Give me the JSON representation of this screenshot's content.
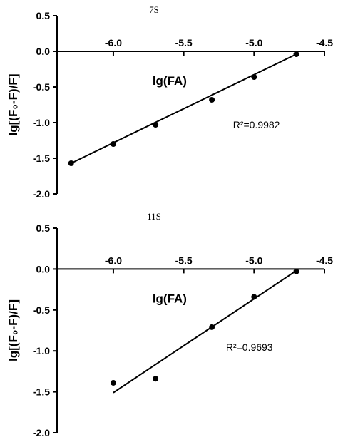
{
  "chart_data": [
    {
      "type": "scatter",
      "title": "7S",
      "xlabel": "lg(FA)",
      "ylabel": "lg[(F₀-F)/F]",
      "xlim": [
        -6.4,
        -4.5
      ],
      "ylim": [
        -2.0,
        0.5
      ],
      "xticks": [
        -6.0,
        -5.5,
        -5.0,
        -4.5
      ],
      "xtick_labels": [
        "-6.0",
        "-5.5",
        "-5.0",
        "-4.5"
      ],
      "yticks": [
        0.5,
        0.0,
        -0.5,
        -1.0,
        -1.5,
        -2.0
      ],
      "ytick_labels": [
        "0.5",
        "0.0",
        "-0.5",
        "-1.0",
        "-1.5",
        "-2.0"
      ],
      "points": [
        {
          "x": -6.3,
          "y": -1.57
        },
        {
          "x": -6.0,
          "y": -1.3
        },
        {
          "x": -5.7,
          "y": -1.03
        },
        {
          "x": -5.3,
          "y": -0.68
        },
        {
          "x": -5.0,
          "y": -0.36
        },
        {
          "x": -4.7,
          "y": -0.04
        }
      ],
      "fit_line": {
        "x": [
          -6.3,
          -4.7
        ],
        "y": [
          -1.57,
          -0.04
        ]
      },
      "annotation": {
        "text": "R²=0.9982",
        "x": -5.15,
        "y": -1.08
      },
      "grid": false,
      "legend": "none"
    },
    {
      "type": "scatter",
      "title": "11S",
      "xlabel": "lg(FA)",
      "ylabel": "lg[(F₀-F)/F]",
      "xlim": [
        -6.4,
        -4.5
      ],
      "ylim": [
        -2.0,
        0.5
      ],
      "xticks": [
        -6.0,
        -5.5,
        -5.0,
        -4.5
      ],
      "xtick_labels": [
        "-6.0",
        "-5.5",
        "-5.0",
        "-4.5"
      ],
      "yticks": [
        0.5,
        0.0,
        -0.5,
        -1.0,
        -1.5,
        -2.0
      ],
      "ytick_labels": [
        "0.5",
        "0.0",
        "-0.5",
        "-1.0",
        "-1.5",
        "-2.0"
      ],
      "points": [
        {
          "x": -6.0,
          "y": -1.39
        },
        {
          "x": -5.7,
          "y": -1.34
        },
        {
          "x": -5.3,
          "y": -0.71
        },
        {
          "x": -5.0,
          "y": -0.34
        },
        {
          "x": -4.7,
          "y": -0.03
        }
      ],
      "fit_line": {
        "x": [
          -6.0,
          -4.7
        ],
        "y": [
          -1.51,
          -0.02
        ]
      },
      "annotation": {
        "text": "R²=0.9693",
        "x": -5.2,
        "y": -1.0
      },
      "grid": false,
      "legend": "none"
    }
  ]
}
